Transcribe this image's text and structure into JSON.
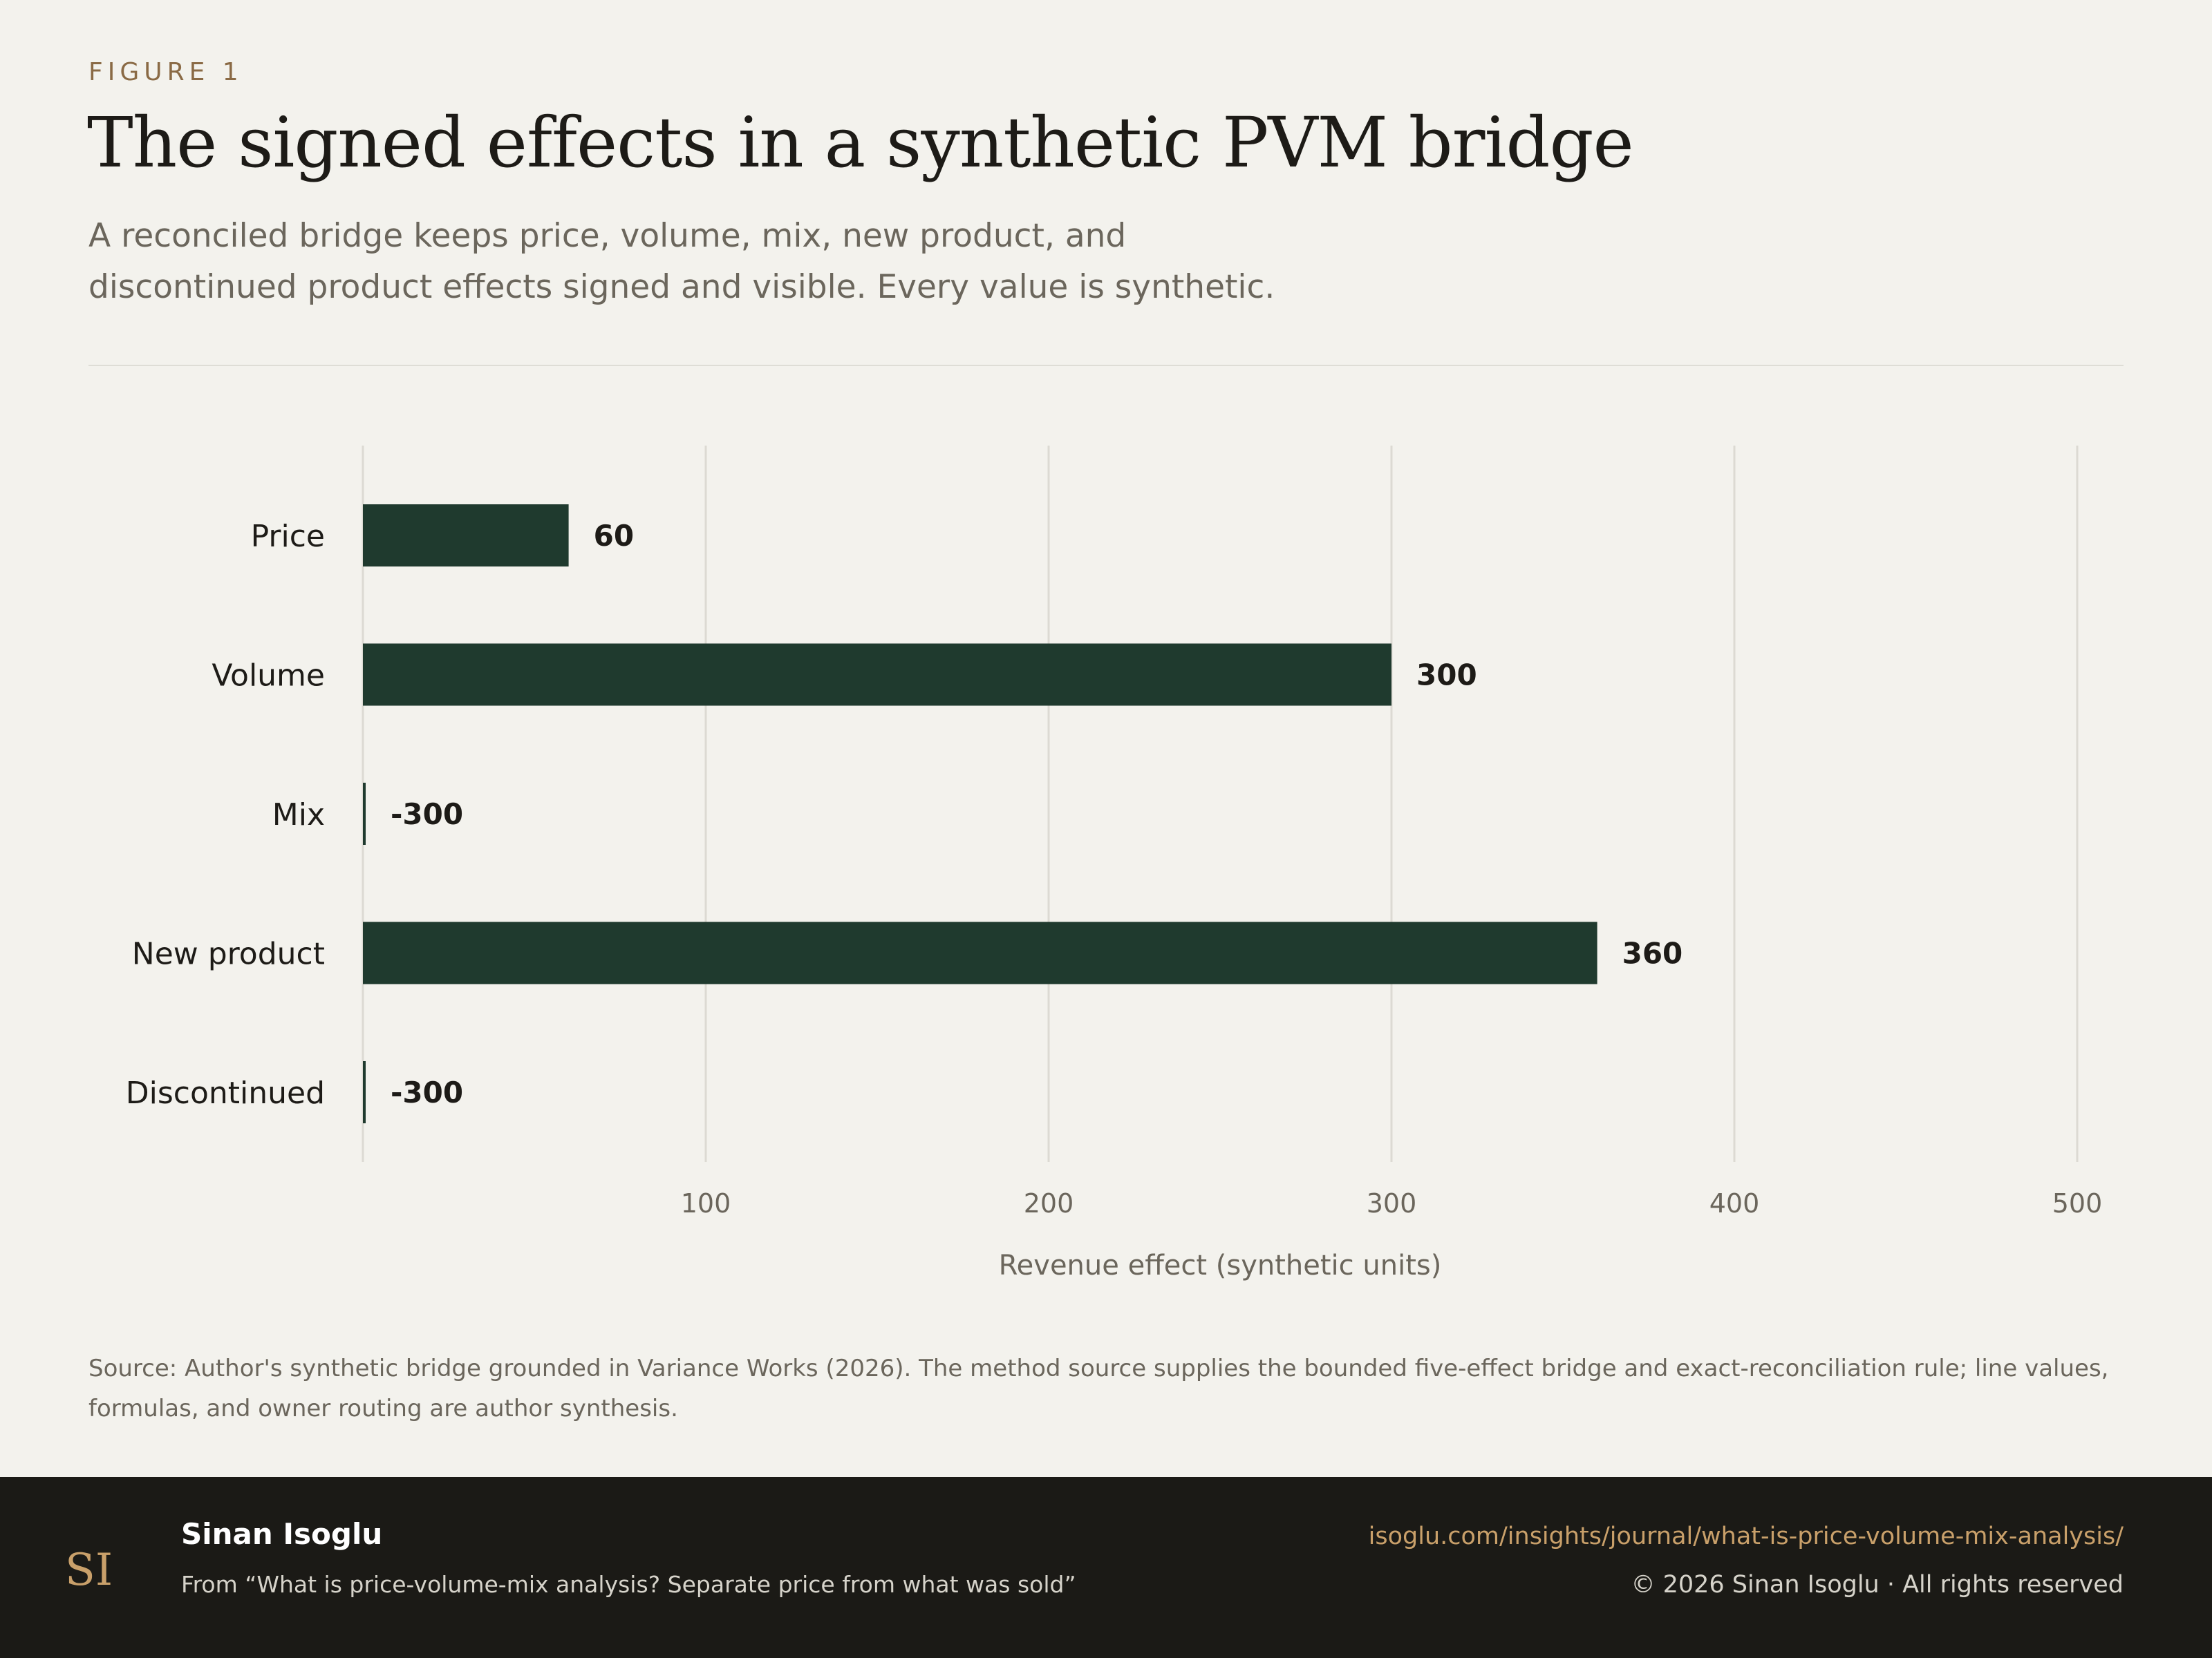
{
  "header": {
    "kicker": "FIGURE 1",
    "title": "The signed effects in a synthetic PVM bridge",
    "subtitle": "A reconciled bridge keeps price, volume, mix, new product, and discontinued product effects signed and visible. Every value is synthetic."
  },
  "chart_data": {
    "type": "bar",
    "orientation": "horizontal",
    "categories": [
      "Price",
      "Volume",
      "Mix",
      "New product",
      "Discontinued"
    ],
    "values": [
      60,
      300,
      -300,
      360,
      -300
    ],
    "data_labels": [
      "60",
      "300",
      "-300",
      "360",
      "-300"
    ],
    "xlabel": "Revenue effect (synthetic units)",
    "ylabel": "",
    "xlim": [
      0,
      500
    ],
    "xticks": [
      "100",
      "200",
      "300",
      "400",
      "500"
    ],
    "grid": "vertical",
    "bar_color": "#1f3a2e"
  },
  "source": "Source: Author's synthetic bridge grounded in Variance Works (2026). The method source supplies the bounded five-effect bridge and exact-reconciliation rule; line values, formulas, and owner routing are author synthesis.",
  "footer": {
    "logo": "SI",
    "author": "Sinan Isoglu",
    "from": "From “What is price-volume-mix analysis? Separate price from what was sold”",
    "url": "isoglu.com/insights/journal/what-is-price-volume-mix-analysis/",
    "copyright": "© 2026 Sinan Isoglu · All rights reserved"
  },
  "colors": {
    "background": "#f3f2ed",
    "bar": "#1f3a2e",
    "kicker": "#8a6a45",
    "footer_bg": "#1b1a16",
    "footer_link": "#c9a06a"
  }
}
